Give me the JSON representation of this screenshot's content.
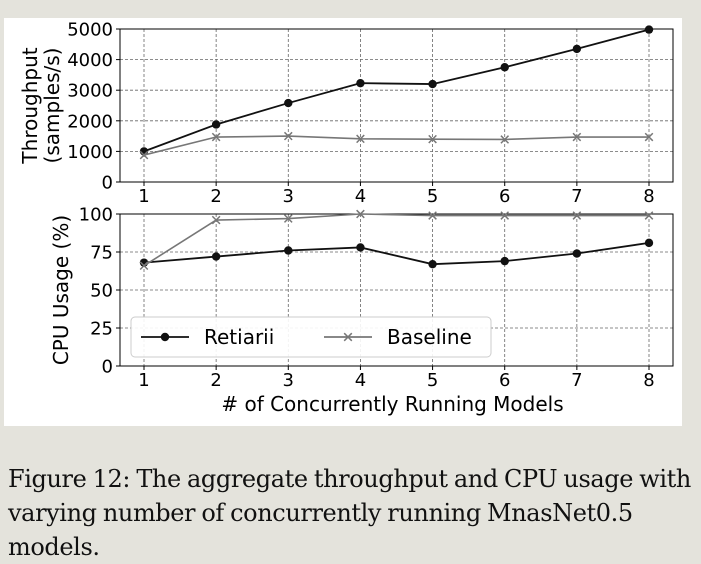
{
  "figure": {
    "caption_label": "Figure 12:",
    "caption_text": "The aggregate throughput and CPU usage with varying number of concurrently running MnasNet0.5 models."
  },
  "legend": {
    "placement": "lower-left of bottom chart",
    "entries": [
      {
        "name": "Retiarii",
        "marker": "filled-circle",
        "color": "#111111"
      },
      {
        "name": "Baseline",
        "marker": "x",
        "color": "#777777"
      }
    ]
  },
  "chart_data": [
    {
      "type": "line",
      "title": "",
      "xlabel": "",
      "ylabel": "Throughput\n(samples/s)",
      "x": [
        1,
        2,
        3,
        4,
        5,
        6,
        7,
        8
      ],
      "xticks": [
        "1",
        "2",
        "3",
        "4",
        "5",
        "6",
        "7",
        "8"
      ],
      "yticks": [
        "0",
        "1000",
        "2000",
        "3000",
        "4000",
        "5000"
      ],
      "ylim": [
        0,
        5000
      ],
      "grid": true,
      "series": [
        {
          "name": "Retiarii",
          "color": "#111111",
          "values": [
            1000,
            1880,
            2580,
            3230,
            3200,
            3750,
            4350,
            4980
          ]
        },
        {
          "name": "Baseline",
          "color": "#777777",
          "values": [
            880,
            1470,
            1500,
            1410,
            1400,
            1390,
            1470,
            1470
          ]
        }
      ]
    },
    {
      "type": "line",
      "title": "",
      "xlabel": "# of Concurrently Running Models",
      "ylabel": "CPU Usage (%)",
      "x": [
        1,
        2,
        3,
        4,
        5,
        6,
        7,
        8
      ],
      "xticks": [
        "1",
        "2",
        "3",
        "4",
        "5",
        "6",
        "7",
        "8"
      ],
      "yticks": [
        "0",
        "25",
        "50",
        "75",
        "100"
      ],
      "ylim": [
        0,
        100
      ],
      "grid": true,
      "series": [
        {
          "name": "Retiarii",
          "color": "#111111",
          "values": [
            68,
            72,
            76,
            78,
            67,
            69,
            74,
            81
          ]
        },
        {
          "name": "Baseline",
          "color": "#777777",
          "values": [
            66,
            96,
            97,
            100,
            99,
            99,
            99,
            99
          ]
        }
      ]
    }
  ]
}
